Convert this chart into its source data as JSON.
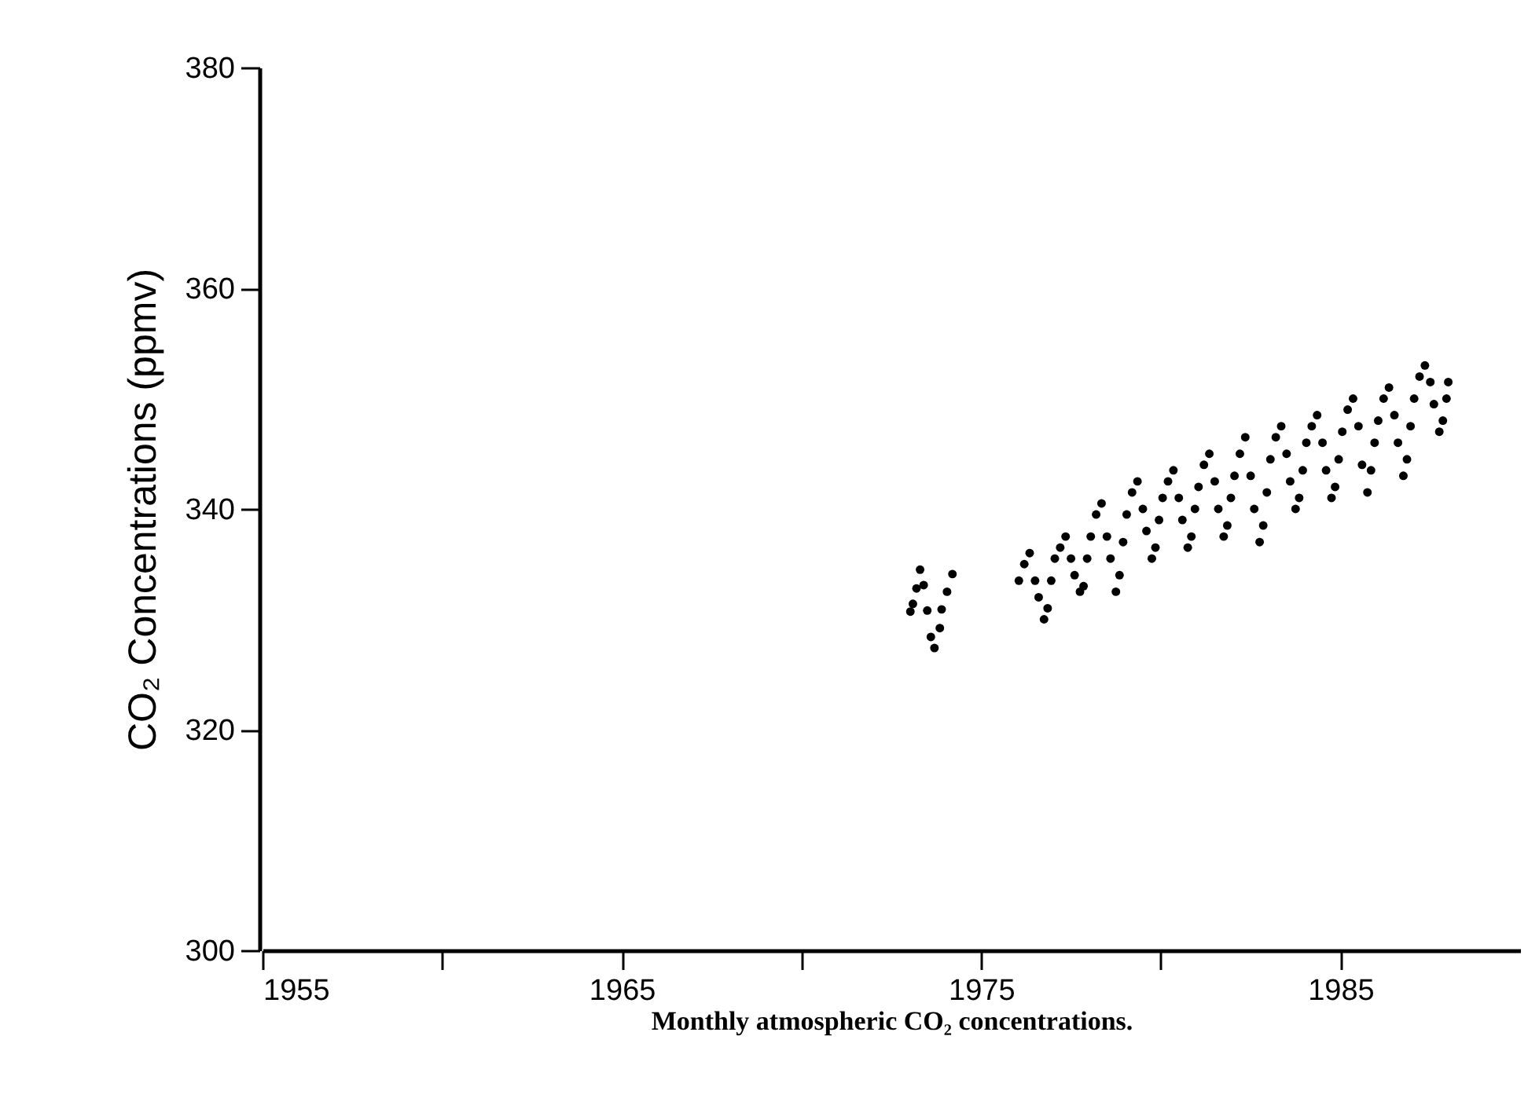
{
  "chart_data": {
    "type": "scatter",
    "xlabel": "Monthly atmospheric CO₂ concentrations.",
    "ylabel": "CO₂ Concentrations (ppmv)",
    "marker": "circle",
    "grid": false,
    "xlim": [
      1955,
      1990
    ],
    "ylim": [
      300,
      380
    ],
    "xticks": [
      {
        "value": 1955,
        "label": "1955"
      },
      {
        "value": 1960,
        "label": null
      },
      {
        "value": 1965,
        "label": "1965"
      },
      {
        "value": 1970,
        "label": null
      },
      {
        "value": 1975,
        "label": "1975"
      },
      {
        "value": 1980,
        "label": null
      },
      {
        "value": 1985,
        "label": "1985"
      }
    ],
    "yticks": [
      300,
      320,
      340,
      360,
      380
    ],
    "series": [
      {
        "color": "#000000",
        "x": [
          1973.03,
          1973.1,
          1973.2,
          1973.3,
          1973.4,
          1973.5,
          1973.6,
          1973.7,
          1973.85,
          1973.9,
          1974.05,
          1974.2
        ],
        "values": [
          330.7,
          331.4,
          332.8,
          334.5,
          333.1,
          330.8,
          328.4,
          327.4,
          329.2,
          330.9,
          332.5,
          334.1
        ]
      },
      {
        "color": "#000000",
        "x": [
          1976.05,
          1976.2,
          1976.35,
          1976.5,
          1976.6,
          1976.75,
          1976.85,
          1976.95,
          1977.05,
          1977.2,
          1977.35,
          1977.5,
          1977.6,
          1977.75,
          1977.85,
          1977.95,
          1978.05,
          1978.2,
          1978.35,
          1978.5,
          1978.6,
          1978.75,
          1978.85,
          1978.95,
          1979.05,
          1979.2,
          1979.35,
          1979.5,
          1979.6,
          1979.75,
          1979.85,
          1979.95,
          1980.05,
          1980.2,
          1980.35,
          1980.5,
          1980.6,
          1980.75,
          1980.85,
          1980.95,
          1981.05,
          1981.2,
          1981.35,
          1981.5,
          1981.6,
          1981.75,
          1981.85,
          1981.95,
          1982.05,
          1982.2,
          1982.35,
          1982.5,
          1982.6,
          1982.75,
          1982.85,
          1982.95,
          1983.05,
          1983.2,
          1983.35,
          1983.5,
          1983.6,
          1983.75,
          1983.85,
          1983.95,
          1984.05,
          1984.2,
          1984.35,
          1984.5,
          1984.6,
          1984.75,
          1984.85,
          1984.95,
          1985.05,
          1985.2,
          1985.35,
          1985.5,
          1985.6,
          1985.75,
          1985.85,
          1985.95,
          1986.05,
          1986.2,
          1986.35,
          1986.5,
          1986.6,
          1986.75,
          1986.85,
          1986.95,
          1987.05,
          1987.2,
          1987.35,
          1987.5,
          1987.6,
          1987.75,
          1987.85,
          1987.95,
          1988.0
        ],
        "values": [
          333.5,
          335,
          336,
          333.5,
          332,
          330,
          331,
          333.5,
          335.5,
          336.5,
          337.5,
          335.5,
          334,
          332.5,
          333,
          335.5,
          337.5,
          339.5,
          340.5,
          337.5,
          335.5,
          332.5,
          334,
          337,
          339.5,
          341.5,
          342.5,
          340,
          338,
          335.5,
          336.5,
          339,
          341,
          342.5,
          343.5,
          341,
          339,
          336.5,
          337.5,
          340,
          342,
          344,
          345,
          342.5,
          340,
          337.5,
          338.5,
          341,
          343,
          345,
          346.5,
          343,
          340,
          337,
          338.5,
          341.5,
          344.5,
          346.5,
          347.5,
          345,
          342.5,
          340,
          341,
          343.5,
          346,
          347.5,
          348.5,
          346,
          343.5,
          341,
          342,
          344.5,
          347,
          349,
          350,
          347.5,
          344,
          341.5,
          343.5,
          346,
          348,
          350,
          351,
          348.5,
          346,
          343,
          344.5,
          347.5,
          350,
          352,
          353,
          351.5,
          349.5,
          347,
          348,
          350,
          351.5
        ]
      }
    ]
  }
}
